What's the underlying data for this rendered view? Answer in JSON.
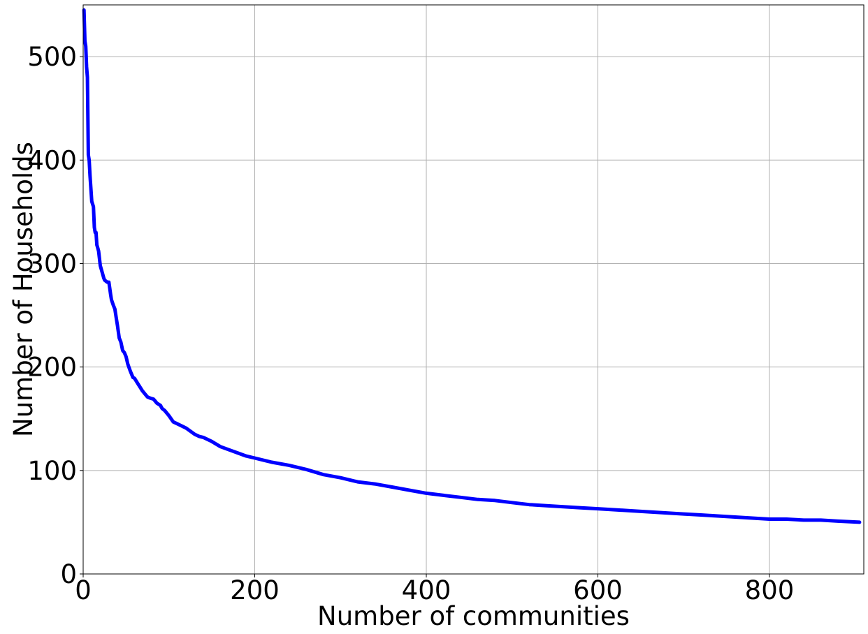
{
  "chart_data": {
    "type": "line",
    "title": "",
    "xlabel": "Number of communities",
    "ylabel": "Number of Households",
    "xlim": [
      0,
      910
    ],
    "ylim": [
      0,
      550
    ],
    "xticks": [
      0,
      200,
      400,
      600,
      800
    ],
    "yticks": [
      0,
      100,
      200,
      300,
      400,
      500
    ],
    "xtick_labels": [
      "0",
      "200",
      "400",
      "600",
      "800"
    ],
    "ytick_labels": [
      "0",
      "100",
      "200",
      "300",
      "400",
      "500"
    ],
    "grid": true,
    "line_color": "#0000ff",
    "series": [
      {
        "x": [
          1,
          2,
          3,
          4,
          5,
          6,
          7,
          8,
          10,
          12,
          13,
          14,
          15,
          16,
          17,
          18,
          20,
          22,
          24,
          25,
          28,
          30,
          32,
          33,
          35,
          37,
          39,
          40,
          42,
          44,
          46,
          48,
          50,
          52,
          55,
          58,
          60,
          63,
          66,
          69,
          72,
          75,
          78,
          82,
          86,
          90,
          92,
          95,
          100,
          105,
          110,
          115,
          120,
          125,
          130,
          135,
          140,
          150,
          160,
          170,
          180,
          190,
          200,
          220,
          240,
          260,
          280,
          300,
          320,
          340,
          360,
          380,
          400,
          420,
          440,
          460,
          480,
          500,
          520,
          540,
          560,
          580,
          600,
          620,
          640,
          660,
          680,
          700,
          720,
          740,
          760,
          780,
          800,
          820,
          840,
          860,
          880,
          905
        ],
        "y": [
          545,
          515,
          510,
          490,
          480,
          405,
          400,
          385,
          360,
          355,
          335,
          330,
          330,
          318,
          315,
          312,
          298,
          292,
          286,
          284,
          282,
          282,
          270,
          265,
          260,
          256,
          245,
          240,
          228,
          224,
          216,
          214,
          210,
          203,
          196,
          190,
          189,
          185,
          181,
          177,
          174,
          171,
          170,
          169,
          165,
          163,
          160,
          158,
          153,
          147,
          145,
          143,
          141,
          138,
          135,
          133,
          132,
          128,
          123,
          120,
          117,
          114,
          112,
          108,
          105,
          101,
          96,
          93,
          89,
          87,
          84,
          81,
          78,
          76,
          74,
          72,
          71,
          69,
          67,
          66,
          65,
          64,
          63,
          62,
          61,
          60,
          59,
          58,
          57,
          56,
          55,
          54,
          53,
          53,
          52,
          52,
          51,
          50
        ]
      }
    ]
  }
}
